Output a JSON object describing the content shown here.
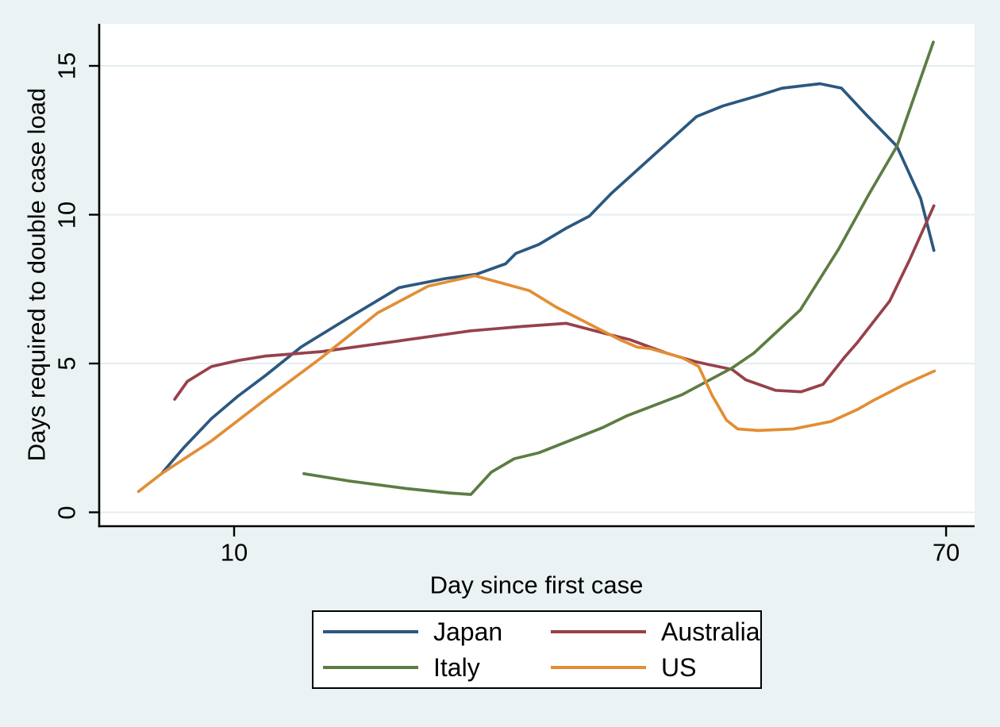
{
  "chart_data": {
    "type": "line",
    "title": "",
    "xlabel": "Day since first case",
    "ylabel": "Days required to double case load",
    "x_scale": "log",
    "x_ticks": [
      10,
      70
    ],
    "y_ticks": [
      0,
      5,
      10,
      15
    ],
    "x_range_days": [
      6.9,
      75.7
    ],
    "y_range": [
      -0.5,
      16.4
    ],
    "grid": "horizontal",
    "legend_position": "bottom",
    "colors": {
      "background": "#eaf2f3",
      "plot_background": "#ffffff",
      "gridline": "#e4edf0",
      "axis": "#000000",
      "text": "#000000"
    },
    "series": [
      {
        "name": "Japan",
        "color": "#2b5880",
        "points": [
          [
            8.2,
            1.3
          ],
          [
            8.7,
            2.15
          ],
          [
            9.4,
            3.15
          ],
          [
            10.1,
            3.9
          ],
          [
            10.9,
            4.6
          ],
          [
            12.0,
            5.55
          ],
          [
            13.7,
            6.55
          ],
          [
            15.7,
            7.55
          ],
          [
            17.8,
            7.85
          ],
          [
            19.4,
            8.0
          ],
          [
            21.0,
            8.35
          ],
          [
            21.6,
            8.7
          ],
          [
            23.0,
            9.0
          ],
          [
            24.8,
            9.55
          ],
          [
            26.4,
            9.95
          ],
          [
            28.0,
            10.7
          ],
          [
            31.2,
            11.9
          ],
          [
            35.4,
            13.3
          ],
          [
            38.0,
            13.65
          ],
          [
            41.9,
            14.0
          ],
          [
            44.7,
            14.25
          ],
          [
            49.6,
            14.4
          ],
          [
            52.6,
            14.25
          ],
          [
            56.1,
            13.4
          ],
          [
            61.2,
            12.3
          ],
          [
            65.3,
            10.55
          ],
          [
            67.7,
            8.8
          ]
        ]
      },
      {
        "name": "Australia",
        "color": "#97414b",
        "points": [
          [
            8.5,
            3.8
          ],
          [
            8.8,
            4.4
          ],
          [
            9.4,
            4.9
          ],
          [
            10.1,
            5.1
          ],
          [
            10.9,
            5.25
          ],
          [
            12.7,
            5.4
          ],
          [
            15.6,
            5.75
          ],
          [
            19.1,
            6.1
          ],
          [
            22.1,
            6.25
          ],
          [
            24.8,
            6.35
          ],
          [
            27.2,
            6.05
          ],
          [
            29.5,
            5.8
          ],
          [
            32.6,
            5.35
          ],
          [
            35.4,
            5.05
          ],
          [
            39.0,
            4.8
          ],
          [
            40.5,
            4.45
          ],
          [
            43.9,
            4.1
          ],
          [
            47.1,
            4.05
          ],
          [
            50.0,
            4.3
          ],
          [
            53.0,
            5.2
          ],
          [
            54.9,
            5.7
          ],
          [
            60.0,
            7.1
          ],
          [
            63.4,
            8.5
          ],
          [
            67.7,
            10.3
          ]
        ]
      },
      {
        "name": "Italy",
        "color": "#5d7c43",
        "points": [
          [
            12.1,
            1.3
          ],
          [
            13.7,
            1.05
          ],
          [
            16.0,
            0.8
          ],
          [
            18.0,
            0.65
          ],
          [
            19.1,
            0.6
          ],
          [
            20.2,
            1.35
          ],
          [
            21.5,
            1.8
          ],
          [
            23.0,
            2.0
          ],
          [
            27.4,
            2.85
          ],
          [
            29.3,
            3.25
          ],
          [
            34.0,
            3.95
          ],
          [
            39.0,
            4.85
          ],
          [
            41.4,
            5.35
          ],
          [
            47.0,
            6.8
          ],
          [
            52.2,
            8.85
          ],
          [
            56.6,
            10.65
          ],
          [
            61.2,
            12.3
          ],
          [
            67.6,
            15.8
          ]
        ]
      },
      {
        "name": "US",
        "color": "#e28e35",
        "points": [
          [
            7.7,
            0.7
          ],
          [
            8.2,
            1.3
          ],
          [
            9.4,
            2.4
          ],
          [
            10.9,
            3.8
          ],
          [
            12.7,
            5.2
          ],
          [
            14.8,
            6.7
          ],
          [
            17.0,
            7.6
          ],
          [
            19.3,
            7.95
          ],
          [
            22.4,
            7.45
          ],
          [
            24.1,
            6.9
          ],
          [
            26.3,
            6.35
          ],
          [
            28.7,
            5.8
          ],
          [
            30.1,
            5.55
          ],
          [
            31.2,
            5.5
          ],
          [
            34.0,
            5.2
          ],
          [
            35.6,
            4.9
          ],
          [
            36.9,
            3.95
          ],
          [
            38.4,
            3.1
          ],
          [
            39.6,
            2.8
          ],
          [
            41.9,
            2.75
          ],
          [
            46.1,
            2.8
          ],
          [
            51.1,
            3.05
          ],
          [
            54.9,
            3.45
          ],
          [
            57.3,
            3.75
          ],
          [
            62.5,
            4.3
          ],
          [
            67.8,
            4.75
          ]
        ]
      }
    ],
    "legend_order": [
      "Japan",
      "Australia",
      "Italy",
      "US"
    ]
  }
}
